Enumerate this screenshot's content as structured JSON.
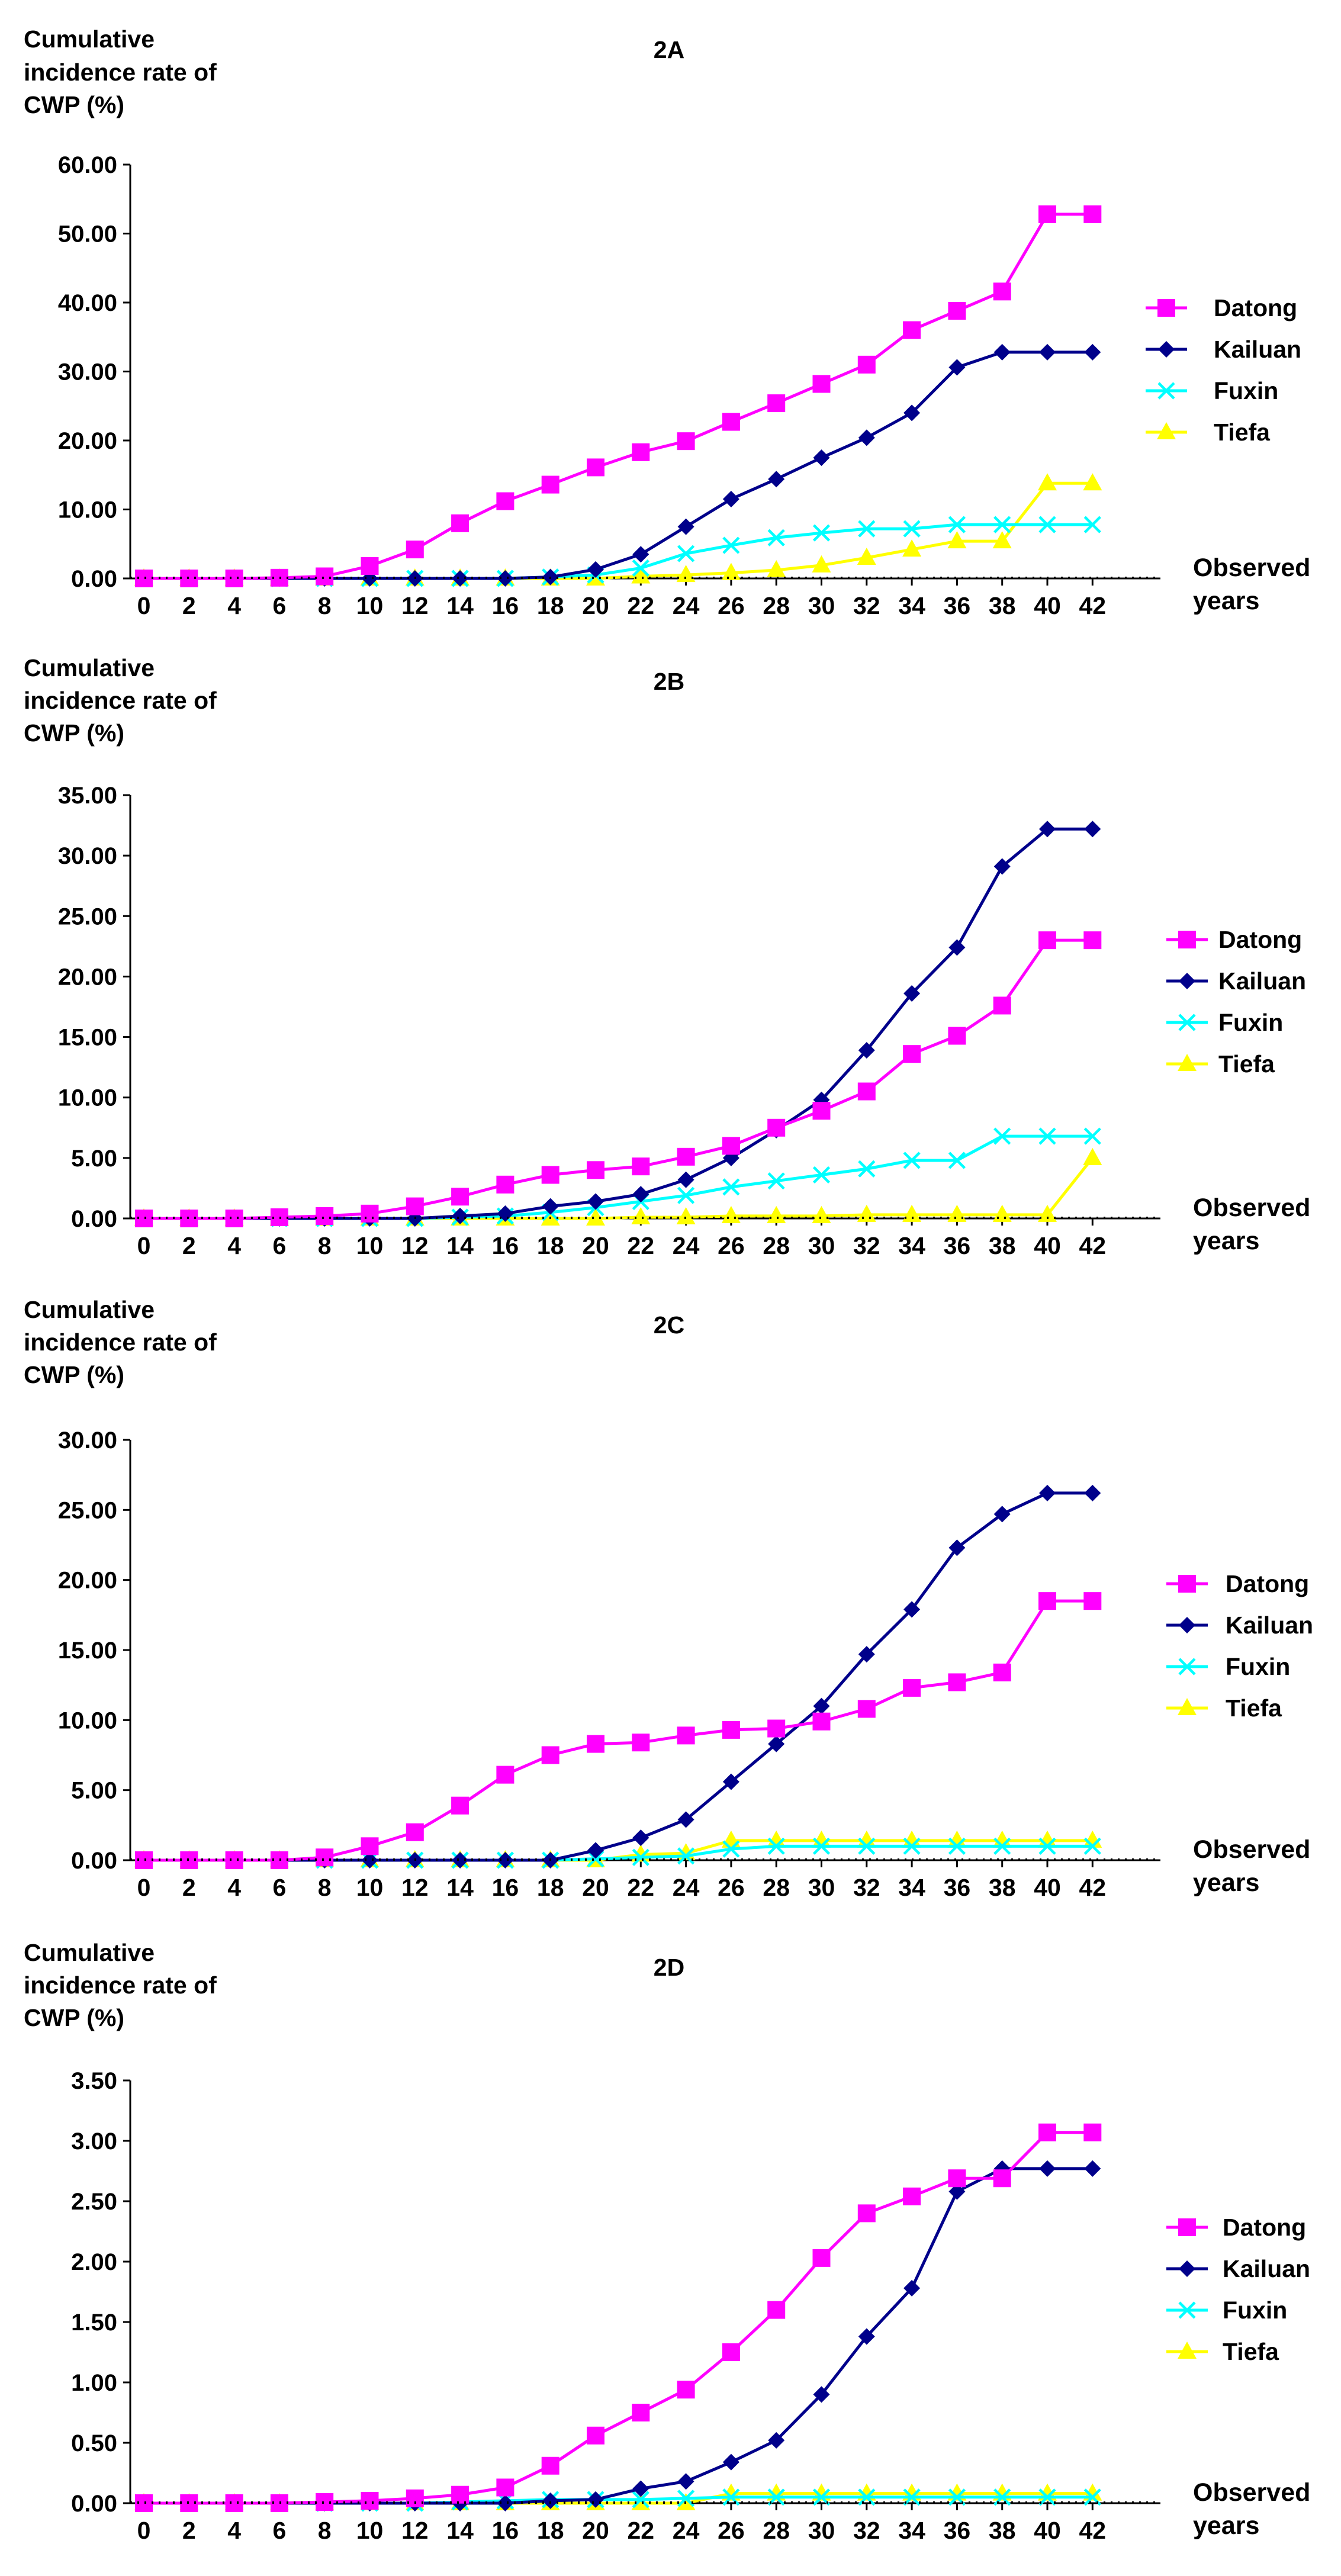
{
  "chart_data": [
    {
      "type": "line",
      "title": "2A",
      "ylabel": [
        "Cumulative",
        "incidence rate of",
        "CWP (%)"
      ],
      "xlabel": [
        "Observed",
        "years"
      ],
      "ylim": [
        0,
        60
      ],
      "yticks": [
        "0.00",
        "10.00",
        "20.00",
        "30.00",
        "40.00",
        "50.00",
        "60.00"
      ],
      "categories": [
        "0",
        "2",
        "4",
        "6",
        "8",
        "10",
        "12",
        "14",
        "16",
        "18",
        "20",
        "22",
        "24",
        "26",
        "28",
        "30",
        "32",
        "34",
        "36",
        "38",
        "40",
        "42"
      ],
      "series": [
        {
          "name": "Datong",
          "values": [
            0,
            0,
            0,
            0.1,
            0.3,
            1.8,
            4.2,
            8.0,
            11.2,
            13.6,
            16.1,
            18.3,
            19.9,
            22.7,
            25.4,
            28.2,
            31.0,
            36.0,
            38.8,
            41.6,
            52.8,
            52.8
          ]
        },
        {
          "name": "Kailuan",
          "values": [
            0,
            0,
            0,
            0,
            0,
            0,
            0,
            0,
            0,
            0.2,
            1.3,
            3.5,
            7.5,
            11.5,
            14.4,
            17.5,
            20.4,
            24.0,
            30.6,
            32.8,
            32.8,
            32.8
          ]
        },
        {
          "name": "Fuxin",
          "values": [
            0,
            0,
            0,
            0,
            0,
            0,
            0,
            0,
            0,
            0.2,
            0.5,
            1.5,
            3.6,
            4.8,
            5.9,
            6.6,
            7.2,
            7.2,
            7.8,
            7.8,
            7.8,
            7.8
          ]
        },
        {
          "name": "Tiefa",
          "values": [
            0,
            0,
            0,
            0,
            0,
            0,
            0,
            0,
            0,
            0,
            0,
            0.3,
            0.5,
            0.8,
            1.2,
            1.9,
            3.0,
            4.2,
            5.4,
            5.4,
            13.8,
            13.8
          ]
        }
      ]
    },
    {
      "type": "line",
      "title": "2B",
      "ylabel": [
        "Cumulative",
        "incidence rate of",
        "CWP (%)"
      ],
      "xlabel": [
        "Observed",
        "years"
      ],
      "ylim": [
        0,
        35
      ],
      "yticks": [
        "0.00",
        "5.00",
        "10.00",
        "15.00",
        "20.00",
        "25.00",
        "30.00",
        "35.00"
      ],
      "categories": [
        "0",
        "2",
        "4",
        "6",
        "8",
        "10",
        "12",
        "14",
        "16",
        "18",
        "20",
        "22",
        "24",
        "26",
        "28",
        "30",
        "32",
        "34",
        "36",
        "38",
        "40",
        "42"
      ],
      "series": [
        {
          "name": "Datong",
          "values": [
            0,
            0,
            0,
            0.1,
            0.2,
            0.4,
            1.0,
            1.8,
            2.8,
            3.6,
            4.0,
            4.3,
            5.1,
            6.0,
            7.5,
            8.9,
            10.5,
            13.6,
            15.1,
            17.6,
            23.0,
            23.0
          ]
        },
        {
          "name": "Kailuan",
          "values": [
            0,
            0,
            0,
            0,
            0,
            0,
            0,
            0.2,
            0.4,
            1.0,
            1.4,
            2.0,
            3.2,
            5.0,
            7.3,
            9.8,
            13.9,
            18.6,
            22.4,
            29.1,
            32.2,
            32.2
          ]
        },
        {
          "name": "Fuxin",
          "values": [
            0,
            0,
            0,
            0,
            0,
            0,
            0,
            0.1,
            0.2,
            0.5,
            0.9,
            1.4,
            1.9,
            2.6,
            3.1,
            3.6,
            4.1,
            4.8,
            4.8,
            6.8,
            6.8,
            6.8
          ]
        },
        {
          "name": "Tiefa",
          "values": [
            0,
            0,
            0,
            0,
            0,
            0,
            0,
            0,
            0,
            0,
            0,
            0.1,
            0.1,
            0.2,
            0.2,
            0.2,
            0.3,
            0.3,
            0.3,
            0.3,
            0.3,
            5.0
          ]
        }
      ]
    },
    {
      "type": "line",
      "title": "2C",
      "ylabel": [
        "Cumulative",
        "incidence rate of",
        "CWP (%)"
      ],
      "xlabel": [
        "Observed",
        "years"
      ],
      "ylim": [
        0,
        30
      ],
      "yticks": [
        "0.00",
        "5.00",
        "10.00",
        "15.00",
        "20.00",
        "25.00",
        "30.00"
      ],
      "categories": [
        "0",
        "2",
        "4",
        "6",
        "8",
        "10",
        "12",
        "14",
        "16",
        "18",
        "20",
        "22",
        "24",
        "26",
        "28",
        "30",
        "32",
        "34",
        "36",
        "38",
        "40",
        "42"
      ],
      "series": [
        {
          "name": "Datong",
          "values": [
            0,
            0,
            0,
            0,
            0.2,
            1.0,
            2.0,
            3.9,
            6.1,
            7.5,
            8.3,
            8.4,
            8.9,
            9.3,
            9.4,
            9.9,
            10.8,
            12.3,
            12.7,
            13.4,
            18.5,
            18.5
          ]
        },
        {
          "name": "Kailuan",
          "values": [
            0,
            0,
            0,
            0,
            0,
            0,
            0,
            0,
            0,
            0,
            0.7,
            1.6,
            2.9,
            5.6,
            8.3,
            11.0,
            14.7,
            17.9,
            22.3,
            24.7,
            26.2,
            26.2
          ]
        },
        {
          "name": "Fuxin",
          "values": [
            0,
            0,
            0,
            0,
            0,
            0,
            0,
            0,
            0,
            0,
            0.1,
            0.2,
            0.3,
            0.8,
            1.0,
            1.0,
            1.0,
            1.0,
            1.0,
            1.0,
            1.0,
            1.0
          ]
        },
        {
          "name": "Tiefa",
          "values": [
            0,
            0,
            0,
            0,
            0,
            0,
            0,
            0,
            0,
            0,
            0,
            0.4,
            0.5,
            1.4,
            1.4,
            1.4,
            1.4,
            1.4,
            1.4,
            1.4,
            1.4,
            1.4
          ]
        }
      ]
    },
    {
      "type": "line",
      "title": "2D",
      "ylabel": [
        "Cumulative",
        "incidence rate of",
        "CWP (%)"
      ],
      "xlabel": [
        "Observed",
        "years"
      ],
      "ylim": [
        0,
        3.5
      ],
      "yticks": [
        "0.00",
        "0.50",
        "1.00",
        "1.50",
        "2.00",
        "2.50",
        "3.00",
        "3.50"
      ],
      "categories": [
        "0",
        "2",
        "4",
        "6",
        "8",
        "10",
        "12",
        "14",
        "16",
        "18",
        "20",
        "22",
        "24",
        "26",
        "28",
        "30",
        "32",
        "34",
        "36",
        "38",
        "40",
        "42"
      ],
      "series": [
        {
          "name": "Datong",
          "values": [
            0,
            0,
            0,
            0,
            0.01,
            0.02,
            0.04,
            0.07,
            0.13,
            0.31,
            0.56,
            0.75,
            0.94,
            1.25,
            1.6,
            2.03,
            2.4,
            2.54,
            2.69,
            2.69,
            3.07,
            3.07
          ]
        },
        {
          "name": "Kailuan",
          "values": [
            0,
            0,
            0,
            0,
            0,
            0,
            0,
            0,
            0,
            0.02,
            0.03,
            0.12,
            0.18,
            0.34,
            0.52,
            0.9,
            1.38,
            1.78,
            2.58,
            2.77,
            2.77,
            2.77
          ]
        },
        {
          "name": "Fuxin",
          "values": [
            0,
            0,
            0,
            0,
            0,
            0,
            0,
            0.01,
            0.02,
            0.03,
            0.03,
            0.03,
            0.04,
            0.05,
            0.05,
            0.05,
            0.05,
            0.05,
            0.05,
            0.05,
            0.05,
            0.05
          ]
        },
        {
          "name": "Tiefa",
          "values": [
            0,
            0,
            0,
            0,
            0,
            0,
            0,
            0,
            0,
            0,
            0,
            0,
            0,
            0.08,
            0.08,
            0.08,
            0.08,
            0.08,
            0.08,
            0.08,
            0.08,
            0.08
          ]
        }
      ]
    }
  ],
  "legend": {
    "placement": "right",
    "entries": [
      "Datong",
      "Kailuan",
      "Fuxin",
      "Tiefa"
    ]
  },
  "colors": {
    "Datong": "#ff00ff",
    "Kailuan": "#00008b",
    "Fuxin": "#00ffff",
    "Tiefa": "#ffff00",
    "axis": "#000000",
    "background": "#ffffff"
  },
  "icons": {
    "Datong": "square-marker",
    "Kailuan": "diamond-marker",
    "Fuxin": "x-marker",
    "Tiefa": "triangle-marker"
  }
}
